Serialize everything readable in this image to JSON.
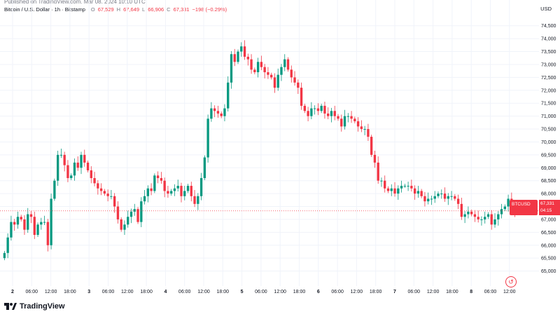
{
  "header": {
    "caption": "Published on TradingView.com, Mar 08, 2024 10:10 UTC",
    "symbol": "Bitcoin / U.S. Dollar · 1h · Bitstamp",
    "o_label": "O",
    "o_value": "67,529",
    "h_label": "H",
    "h_value": "67,649",
    "l_label": "L",
    "l_value": "66,906",
    "c_label": "C",
    "c_value": "67,331",
    "change": "−198 (−0.29%)",
    "currency": "USD"
  },
  "tags": {
    "ticker": "BTCUSD",
    "price": "67,331",
    "countdown": "04:15"
  },
  "footer": {
    "brand": "TradingView"
  },
  "colors": {
    "up": "#089981",
    "down": "#f23645",
    "grid": "#f0f3fa",
    "axis_text": "#131722"
  },
  "chart_data": {
    "type": "candlestick",
    "title": "Bitcoin / U.S. Dollar · 1h · Bitstamp",
    "ylabel": "USD",
    "ylim": [
      64500,
      74900
    ],
    "y_ticks": [
      65000,
      65500,
      66000,
      66500,
      67000,
      67500,
      68000,
      68500,
      69000,
      69500,
      70000,
      70500,
      71000,
      71500,
      72000,
      72500,
      73000,
      73500,
      74000,
      74500
    ],
    "y_tick_labels": [
      "65,000",
      "65,500",
      "66,000",
      "66,500",
      "67,000",
      "67,500",
      "68,000",
      "68,500",
      "69,000",
      "69,500",
      "70,000",
      "70,500",
      "71,000",
      "71,500",
      "72,000",
      "72,500",
      "73,000",
      "73,500",
      "74,000",
      "74,500"
    ],
    "x_ticks": [
      "2",
      "06:00",
      "12:00",
      "18:00",
      "3",
      "06:00",
      "12:00",
      "18:00",
      "4",
      "06:00",
      "12:00",
      "18:00",
      "5",
      "06:00",
      "12:00",
      "18:00",
      "6",
      "06:00",
      "12:00",
      "18:00",
      "7",
      "06:00",
      "12:00",
      "18:00",
      "8",
      "06:00",
      "12:00"
    ],
    "x_tick_bold": [
      true,
      false,
      false,
      false,
      true,
      false,
      false,
      false,
      true,
      false,
      false,
      false,
      true,
      false,
      false,
      false,
      true,
      false,
      false,
      false,
      true,
      false,
      false,
      false,
      true,
      false,
      false
    ],
    "last_price": 67331,
    "closes": [
      65700,
      66300,
      66900,
      66800,
      67100,
      67000,
      66600,
      67200,
      67100,
      66400,
      66800,
      66900,
      66900,
      66000,
      67800,
      68500,
      69500,
      69500,
      69100,
      68600,
      68700,
      69200,
      69000,
      69500,
      69200,
      68900,
      68600,
      68400,
      68200,
      68100,
      68000,
      67900,
      67900,
      67500,
      67000,
      66600,
      66800,
      67100,
      67300,
      67400,
      66900,
      67700,
      67900,
      68200,
      68100,
      68700,
      68600,
      68500,
      68100,
      68000,
      68100,
      68200,
      68300,
      67900,
      68100,
      68300,
      67900,
      67600,
      67900,
      68600,
      69400,
      70900,
      71300,
      71200,
      71100,
      71000,
      71300,
      72300,
      73400,
      73100,
      73500,
      73700,
      73300,
      73200,
      72800,
      72700,
      73100,
      72900,
      72700,
      72600,
      72500,
      72100,
      72600,
      72900,
      73200,
      72800,
      72500,
      72300,
      72100,
      71400,
      71200,
      71000,
      71300,
      71300,
      71200,
      71400,
      71100,
      71000,
      71200,
      71000,
      70900,
      70600,
      71000,
      71000,
      70900,
      70800,
      70600,
      70500,
      70500,
      70200,
      69500,
      69200,
      68500,
      68500,
      68200,
      68100,
      68200,
      68000,
      68200,
      68300,
      68300,
      68300,
      68200,
      68000,
      68100,
      67900,
      67700,
      67800,
      67800,
      67900,
      68000,
      68000,
      67800,
      67900,
      67900,
      67800,
      67600,
      67100,
      67200,
      67300,
      67200,
      67100,
      67000,
      67000,
      67100,
      67200,
      66800,
      67000,
      67200,
      67400,
      67500,
      67800,
      67500,
      67331
    ],
    "highs_lows_note": "wicks approximated"
  }
}
